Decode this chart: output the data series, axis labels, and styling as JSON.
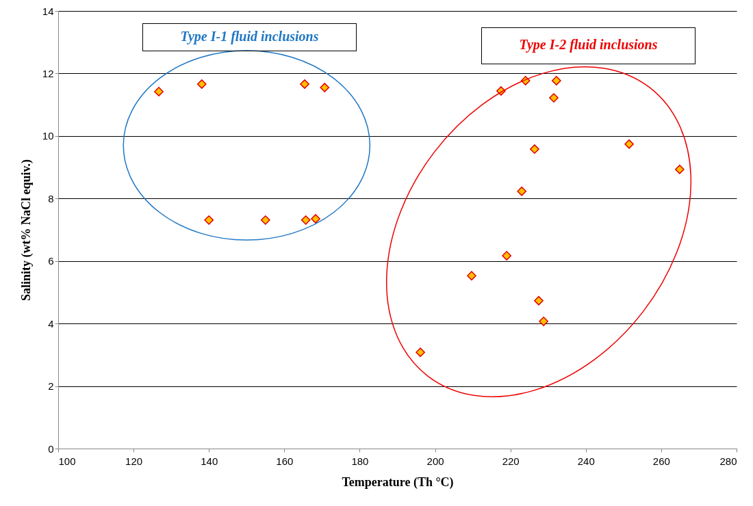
{
  "chart_data": {
    "type": "scatter",
    "xlabel": "Temperature (Th °C)",
    "ylabel": "Salinity (wt% NaCl equiv.)",
    "annotations": [
      "Type I-1 fluid inclusions",
      "Type I-2 fluid inclusions"
    ],
    "series": [
      {
        "color": "#ffc000",
        "x": [
          126.7,
          138.1,
          165.4,
          170.7,
          140.0,
          155.0,
          165.7,
          168.3,
          217.5,
          224.0,
          232.2,
          231.5,
          226.4,
          251.5,
          264.9,
          223.0,
          219.0,
          209.7,
          227.5,
          228.8,
          196.1
        ],
        "values": [
          11.42,
          11.66,
          11.66,
          11.55,
          7.31,
          7.31,
          7.31,
          7.35,
          11.44,
          11.77,
          11.77,
          11.22,
          9.58,
          9.74,
          8.93,
          8.23,
          6.17,
          5.53,
          4.73,
          4.07,
          3.08
        ]
      }
    ],
    "xlim": [
      100,
      280
    ],
    "xticks": [
      100,
      120,
      140,
      160,
      180,
      200,
      220,
      240,
      260,
      280
    ],
    "ylim": [
      0,
      14
    ],
    "yticks": [
      0,
      2,
      4,
      6,
      8,
      10,
      12,
      14
    ],
    "grid": "y",
    "marker": "diamond"
  }
}
